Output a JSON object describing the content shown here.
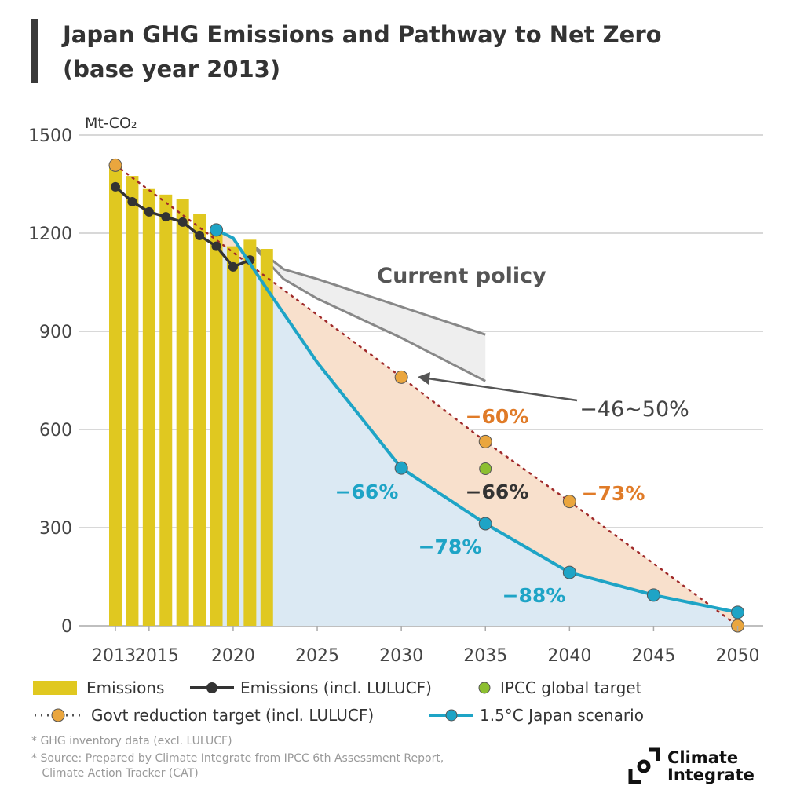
{
  "title": {
    "line1": "Japan GHG Emissions and Pathway to Net Zero",
    "line2": "(base year 2013)"
  },
  "colors": {
    "bars": "#e0c820",
    "lulucf": "#333333",
    "govt": "#eaa63e",
    "govt_line": "#a02a2a",
    "ipcc": "#8cbf30",
    "scenario": "#1ea4c6",
    "policy": "#888888",
    "orange_text": "#e07b28",
    "cyan_text": "#1ea4c6",
    "blue_fill": "#dbe9f3",
    "orange_fill": "#f8e0cc",
    "policy_fill": "#eeeeee"
  },
  "chart_data": {
    "type": "bar+line",
    "title": "Japan GHG Emissions and Pathway to Net Zero (base year 2013)",
    "ylabel": "Mt-CO₂",
    "ylim": [
      0,
      1500
    ],
    "yticks": [
      0,
      300,
      600,
      900,
      1200,
      1500
    ],
    "xlim": [
      2013,
      2050
    ],
    "xticks": [
      2013,
      2015,
      2020,
      2025,
      2030,
      2035,
      2040,
      2045,
      2050
    ],
    "grid": true,
    "series": [
      {
        "name": "Emissions",
        "kind": "bar",
        "x": [
          2013,
          2014,
          2015,
          2016,
          2017,
          2018,
          2019,
          2020,
          2021,
          2022
        ],
        "values": [
          1410,
          1375,
          1335,
          1318,
          1305,
          1258,
          1212,
          1160,
          1180,
          1152
        ]
      },
      {
        "name": "Emissions (incl. LULUCF)",
        "kind": "line",
        "x": [
          2013,
          2014,
          2015,
          2016,
          2017,
          2018,
          2019,
          2020,
          2021
        ],
        "values": [
          1342,
          1296,
          1265,
          1250,
          1234,
          1193,
          1160,
          1097,
          1118
        ]
      },
      {
        "name": "Govt reduction target (incl. LULUCF)",
        "kind": "dotted",
        "x": [
          2013,
          2030,
          2035,
          2040,
          2050
        ],
        "values": [
          1408,
          760,
          563,
          380,
          0
        ]
      },
      {
        "name": "IPCC global target",
        "kind": "point",
        "x": [
          2035
        ],
        "values": [
          480
        ]
      },
      {
        "name": "1.5°C Japan scenario",
        "kind": "line",
        "x": [
          2019,
          2020,
          2022,
          2025,
          2030,
          2035,
          2040,
          2045,
          2050
        ],
        "values": [
          1210,
          1185,
          1030,
          805,
          482,
          312,
          163,
          94,
          41
        ],
        "markers": [
          2019,
          2030,
          2035,
          2040,
          2045,
          2050
        ]
      },
      {
        "name": "Current policy",
        "kind": "band",
        "x": [
          2021,
          2023,
          2025,
          2030,
          2035
        ],
        "upper": [
          1170,
          1090,
          1060,
          975,
          890
        ],
        "lower": [
          1170,
          1060,
          1000,
          880,
          748
        ]
      }
    ],
    "annotations": {
      "current_policy": "Current policy",
      "target_2030": "−46~50%",
      "govt_2035": "−60%",
      "govt_2040": "−73%",
      "ipcc_2035": "−66%",
      "s_2030": "−66%",
      "s_2035": "−78%",
      "s_2040": "−88%"
    }
  },
  "legend": {
    "emissions": "Emissions",
    "lulucf": "Emissions (incl. LULUCF)",
    "ipcc": "IPCC global target",
    "govt": "Govt reduction target (incl. LULUCF)",
    "scenario": "1.5°C Japan scenario"
  },
  "notes": [
    "* GHG inventory data (excl. LULUCF)",
    "* Source: Prepared by Climate Integrate from  IPCC 6th Assessment Report,",
    "   Climate Action Tracker (CAT)"
  ],
  "logo": {
    "line1": "Climate",
    "line2": "Integrate"
  }
}
